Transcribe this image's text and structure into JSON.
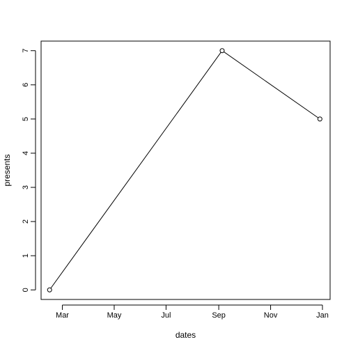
{
  "chart_data": {
    "type": "line",
    "title": "",
    "xlabel": "dates",
    "ylabel": "presents",
    "x": [
      "2000-02-15",
      "2000-09-05",
      "2000-12-29"
    ],
    "values": [
      0,
      7,
      5
    ],
    "markers": "open-circle",
    "x_axis_type": "date",
    "xlim": [
      "2000-02-05",
      "2001-01-10"
    ],
    "ylim": [
      -0.28,
      7.28
    ],
    "x_ticks": [
      {
        "date": "2000-03-01",
        "label": "Mar"
      },
      {
        "date": "2000-05-01",
        "label": "May"
      },
      {
        "date": "2000-07-01",
        "label": "Jul"
      },
      {
        "date": "2000-09-01",
        "label": "Sep"
      },
      {
        "date": "2000-11-01",
        "label": "Nov"
      },
      {
        "date": "2001-01-01",
        "label": "Jan"
      }
    ],
    "y_ticks": [
      0,
      1,
      2,
      3,
      4,
      5,
      6,
      7
    ],
    "grid": false,
    "legend": "none",
    "colors": {
      "line": "#000000",
      "marker": "#000000",
      "axis": "#000000",
      "background": "#ffffff"
    }
  }
}
